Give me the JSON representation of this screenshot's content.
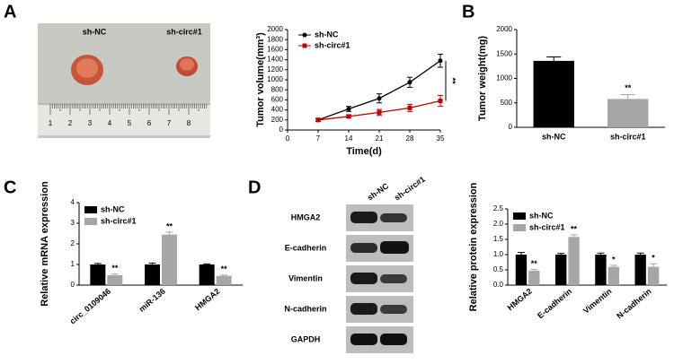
{
  "panel_labels": [
    "A",
    "B",
    "C",
    "D"
  ],
  "photo": {
    "labels": [
      "sh-NC",
      "sh-circ#1"
    ],
    "ruler_numbers": [
      "1",
      "2",
      "3",
      "4",
      "5",
      "6",
      "7",
      "8"
    ]
  },
  "blot": {
    "columns": [
      "sh-NC",
      "sh-circ#1"
    ],
    "rows": [
      "HMGA2",
      "E-cadherin",
      "Vimentin",
      "N-cadherin",
      "GAPDH"
    ]
  },
  "chart_data": [
    {
      "type": "line",
      "ylabel": "Tumor volume(mm³)",
      "xlabel": "Time(d)",
      "x": [
        7,
        14,
        21,
        28,
        35
      ],
      "xlim": [
        0,
        35
      ],
      "xticks": [
        0,
        7,
        14,
        21,
        28,
        35
      ],
      "ylim": [
        0,
        2000
      ],
      "yticks": [
        0,
        200,
        400,
        600,
        800,
        1000,
        1200,
        1400,
        1600,
        1800,
        2000
      ],
      "legend": "upper left",
      "annotation": "**",
      "series": [
        {
          "name": "sh-NC",
          "color": "#000000",
          "marker": "circle",
          "values": [
            200,
            420,
            630,
            950,
            1380
          ],
          "errors": [
            30,
            50,
            90,
            100,
            130
          ]
        },
        {
          "name": "sh-circ#1",
          "color": "#c00000",
          "marker": "square",
          "values": [
            200,
            270,
            350,
            440,
            580
          ],
          "errors": [
            25,
            30,
            60,
            70,
            110
          ]
        }
      ]
    },
    {
      "type": "bar",
      "ylabel": "Tumor weight(mg)",
      "categories": [
        "sh-NC",
        "sh-circ#1"
      ],
      "values": [
        1360,
        580
      ],
      "errors": [
        80,
        90
      ],
      "colors": [
        "#000000",
        "#a6a6a6"
      ],
      "significance": [
        null,
        "**"
      ],
      "ylim": [
        0,
        2000
      ],
      "yticks": [
        0,
        500,
        1000,
        1500,
        2000
      ]
    },
    {
      "type": "grouped_bar",
      "ylabel": "Relative mRNA expression",
      "categories": [
        "circ_0109046",
        "miR-136",
        "HMGA2"
      ],
      "ylim": [
        0,
        4
      ],
      "yticks": [
        0,
        1,
        2,
        3,
        4
      ],
      "legend": "upper left",
      "series": [
        {
          "name": "sh-NC",
          "color": "#000000",
          "values": [
            1.0,
            1.0,
            1.0
          ],
          "errors": [
            0.05,
            0.07,
            0.03
          ],
          "significance": [
            null,
            null,
            null
          ]
        },
        {
          "name": "sh-circ#1",
          "color": "#a6a6a6",
          "values": [
            0.48,
            2.45,
            0.45
          ],
          "errors": [
            0.06,
            0.12,
            0.04
          ],
          "significance": [
            "**",
            "**",
            "**"
          ]
        }
      ]
    },
    {
      "type": "grouped_bar",
      "ylabel": "Relative protein expression",
      "categories": [
        "HMGA2",
        "E-cadherin",
        "Vimentin",
        "N-cadherin"
      ],
      "ylim": [
        0,
        2.5
      ],
      "yticks": [
        {
          "value": 0,
          "label": "0.0"
        },
        0.5,
        {
          "value": 1,
          "label": "1.0"
        },
        1.5,
        {
          "value": 2,
          "label": "2.0"
        },
        2.5
      ],
      "legend": "upper left",
      "series": [
        {
          "name": "sh-NC",
          "color": "#000000",
          "values": [
            1.0,
            1.0,
            1.0,
            1.0
          ],
          "errors": [
            0.07,
            0.04,
            0.05,
            0.05
          ],
          "significance": [
            null,
            null,
            null,
            null
          ]
        },
        {
          "name": "sh-circ#1",
          "color": "#a6a6a6",
          "values": [
            0.47,
            1.58,
            0.6,
            0.6
          ],
          "errors": [
            0.04,
            0.07,
            0.05,
            0.1
          ],
          "significance": [
            "**",
            "**",
            "*",
            "*"
          ]
        }
      ]
    }
  ]
}
